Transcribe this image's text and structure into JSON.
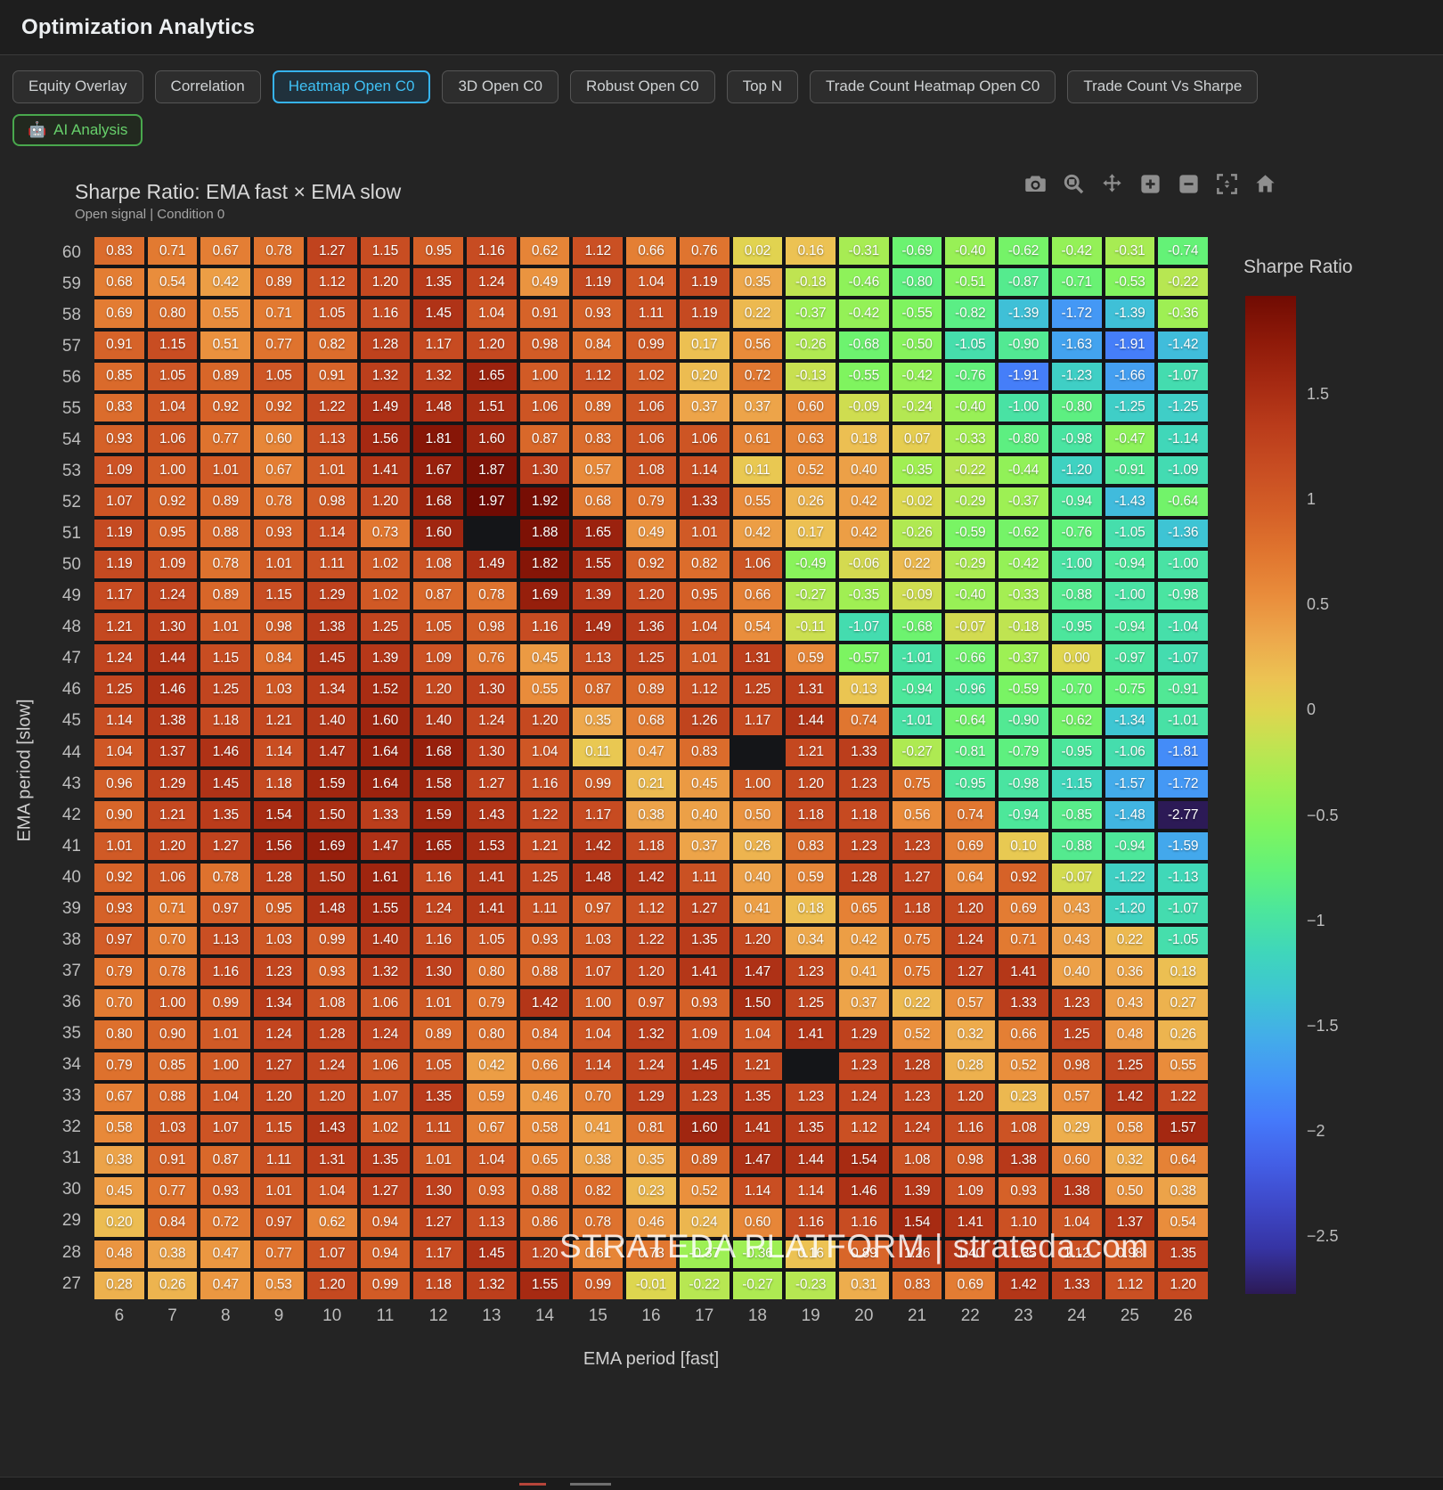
{
  "header": {
    "title": "Optimization Analytics"
  },
  "tabs": {
    "active_index": 2,
    "items": [
      {
        "label": "Equity Overlay"
      },
      {
        "label": "Correlation"
      },
      {
        "label": "Heatmap Open C0"
      },
      {
        "label": "3D Open C0"
      },
      {
        "label": "Robust Open C0"
      },
      {
        "label": "Top N"
      },
      {
        "label": "Trade Count Heatmap Open C0"
      },
      {
        "label": "Trade Count Vs Sharpe"
      }
    ]
  },
  "ai_button": {
    "icon": "🤖",
    "label": "AI Analysis"
  },
  "modebar": {
    "icons": [
      "camera-icon",
      "zoom-icon",
      "pan-icon",
      "zoom-in-icon",
      "zoom-out-icon",
      "autoscale-icon",
      "home-icon"
    ]
  },
  "chart": {
    "title": "Sharpe Ratio: EMA fast × EMA slow",
    "subtitle": "Open signal | Condition 0",
    "xlabel": "EMA period [fast]",
    "ylabel": "EMA period [slow]",
    "colorbar_title": "Sharpe Ratio",
    "watermark": "STRATEDA PLATFORM | strateda.com"
  },
  "chart_data": {
    "type": "heatmap",
    "xlabel": "EMA period [fast]",
    "ylabel": "EMA period [slow]",
    "x": [
      6,
      7,
      8,
      9,
      10,
      11,
      12,
      13,
      14,
      15,
      16,
      17,
      18,
      19,
      20,
      21,
      22,
      23,
      24,
      25,
      26
    ],
    "y": [
      60,
      59,
      58,
      57,
      56,
      55,
      54,
      53,
      52,
      51,
      50,
      49,
      48,
      47,
      46,
      45,
      44,
      43,
      42,
      41,
      40,
      39,
      38,
      37,
      36,
      35,
      34,
      33,
      32,
      31,
      30,
      29,
      28,
      27
    ],
    "zmin": -2.77,
    "zmax": 1.97,
    "legend_position": "right",
    "colorbar_ticks": [
      1.5,
      1,
      0.5,
      0,
      -0.5,
      -1,
      -1.5,
      -2,
      -2.5
    ],
    "colorscale": [
      [
        -2.77,
        "#2c1a56"
      ],
      [
        -2.55,
        "#3634a4"
      ],
      [
        -2.35,
        "#3e48c8"
      ],
      [
        -2.15,
        "#435fe6"
      ],
      [
        -1.95,
        "#4579fa"
      ],
      [
        -1.75,
        "#4494f7"
      ],
      [
        -1.55,
        "#43ade9"
      ],
      [
        -1.35,
        "#3ec5d3"
      ],
      [
        -1.15,
        "#3fd6bb"
      ],
      [
        -0.95,
        "#4ce69c"
      ],
      [
        -0.75,
        "#63f278"
      ],
      [
        -0.55,
        "#7ff45f"
      ],
      [
        -0.35,
        "#a0ef53"
      ],
      [
        -0.15,
        "#c4e251"
      ],
      [
        0.0,
        "#dfd54f"
      ],
      [
        0.15,
        "#ecc353"
      ],
      [
        0.35,
        "#eda74b"
      ],
      [
        0.55,
        "#e98c3b"
      ],
      [
        0.75,
        "#e0752f"
      ],
      [
        0.95,
        "#d45f27"
      ],
      [
        1.15,
        "#c84d22"
      ],
      [
        1.35,
        "#ba3c1b"
      ],
      [
        1.55,
        "#a62a12"
      ],
      [
        1.75,
        "#8f1a09"
      ],
      [
        1.97,
        "#700b03"
      ]
    ],
    "z": [
      [
        0.83,
        0.71,
        0.67,
        0.78,
        1.27,
        1.15,
        0.95,
        1.16,
        0.62,
        1.12,
        0.66,
        0.76,
        0.02,
        0.16,
        -0.31,
        -0.69,
        -0.4,
        -0.62,
        -0.42,
        -0.31,
        -0.74
      ],
      [
        0.68,
        0.54,
        0.42,
        0.89,
        1.12,
        1.2,
        1.35,
        1.24,
        0.49,
        1.19,
        1.04,
        1.19,
        0.35,
        -0.18,
        -0.46,
        -0.8,
        -0.51,
        -0.87,
        -0.71,
        -0.53,
        -0.22
      ],
      [
        0.69,
        0.8,
        0.55,
        0.71,
        1.05,
        1.16,
        1.45,
        1.04,
        0.91,
        0.93,
        1.11,
        1.19,
        0.22,
        -0.37,
        -0.42,
        -0.55,
        -0.82,
        -1.39,
        -1.72,
        -1.39,
        -0.36
      ],
      [
        0.91,
        1.15,
        0.51,
        0.77,
        0.82,
        1.28,
        1.17,
        1.2,
        0.98,
        0.84,
        0.99,
        0.17,
        0.56,
        -0.26,
        -0.68,
        -0.5,
        -1.05,
        -0.9,
        -1.63,
        -1.91,
        -1.42
      ],
      [
        0.85,
        1.05,
        0.89,
        1.05,
        0.91,
        1.32,
        1.32,
        1.65,
        1.0,
        1.12,
        1.02,
        0.2,
        0.72,
        -0.13,
        -0.55,
        -0.42,
        -0.76,
        -1.91,
        -1.23,
        -1.66,
        -1.07
      ],
      [
        0.83,
        1.04,
        0.92,
        0.92,
        1.22,
        1.49,
        1.48,
        1.51,
        1.06,
        0.89,
        1.06,
        0.37,
        0.37,
        0.6,
        -0.09,
        -0.24,
        -0.4,
        -1.0,
        -0.8,
        -1.25,
        -1.25
      ],
      [
        0.93,
        1.06,
        0.77,
        0.6,
        1.13,
        1.56,
        1.81,
        1.6,
        0.87,
        0.83,
        1.06,
        1.06,
        0.61,
        0.63,
        0.18,
        0.07,
        -0.33,
        -0.8,
        -0.98,
        -0.47,
        -1.14
      ],
      [
        1.09,
        1.0,
        1.01,
        0.67,
        1.01,
        1.41,
        1.67,
        1.87,
        1.3,
        0.57,
        1.08,
        1.14,
        0.11,
        0.52,
        0.4,
        -0.35,
        -0.22,
        -0.44,
        -1.2,
        -0.91,
        -1.09
      ],
      [
        1.07,
        0.92,
        0.89,
        0.78,
        0.98,
        1.2,
        1.68,
        1.97,
        1.92,
        0.68,
        0.79,
        1.33,
        0.55,
        0.26,
        0.42,
        -0.02,
        -0.29,
        -0.37,
        -0.94,
        -1.43,
        -0.64
      ],
      [
        1.19,
        0.95,
        0.88,
        0.93,
        1.14,
        0.73,
        1.6,
        null,
        1.88,
        1.65,
        0.49,
        1.01,
        0.42,
        0.17,
        0.42,
        -0.26,
        -0.59,
        -0.62,
        -0.76,
        -1.05,
        -1.36
      ],
      [
        1.19,
        1.09,
        0.78,
        1.01,
        1.11,
        1.02,
        1.08,
        1.49,
        1.82,
        1.55,
        0.92,
        0.82,
        1.06,
        -0.49,
        -0.06,
        0.22,
        -0.29,
        -0.42,
        -1.0,
        -0.94,
        -1.0
      ],
      [
        1.17,
        1.24,
        0.89,
        1.15,
        1.29,
        1.02,
        0.87,
        0.78,
        1.69,
        1.39,
        1.2,
        0.95,
        0.66,
        -0.27,
        -0.35,
        -0.09,
        -0.4,
        -0.33,
        -0.88,
        -1.0,
        -0.98
      ],
      [
        1.21,
        1.3,
        1.01,
        0.98,
        1.38,
        1.25,
        1.05,
        0.98,
        1.16,
        1.49,
        1.36,
        1.04,
        0.54,
        -0.11,
        -1.07,
        -0.68,
        -0.07,
        -0.18,
        -0.95,
        -0.94,
        -1.04
      ],
      [
        1.24,
        1.44,
        1.15,
        0.84,
        1.45,
        1.39,
        1.09,
        0.76,
        0.45,
        1.13,
        1.25,
        1.01,
        1.31,
        0.59,
        -0.57,
        -1.01,
        -0.66,
        -0.37,
        0.0,
        -0.97,
        -1.07
      ],
      [
        1.25,
        1.46,
        1.25,
        1.03,
        1.34,
        1.52,
        1.2,
        1.3,
        0.55,
        0.87,
        0.89,
        1.12,
        1.25,
        1.31,
        0.13,
        -0.94,
        -0.96,
        -0.59,
        -0.7,
        -0.75,
        -0.91
      ],
      [
        1.14,
        1.38,
        1.18,
        1.21,
        1.4,
        1.6,
        1.4,
        1.24,
        1.2,
        0.35,
        0.68,
        1.26,
        1.17,
        1.44,
        0.74,
        -1.01,
        -0.64,
        -0.9,
        -0.62,
        -1.34,
        -1.01
      ],
      [
        1.04,
        1.37,
        1.46,
        1.14,
        1.47,
        1.64,
        1.68,
        1.3,
        1.04,
        0.11,
        0.47,
        0.83,
        null,
        1.21,
        1.33,
        -0.27,
        -0.81,
        -0.79,
        -0.95,
        -1.06,
        -1.81
      ],
      [
        0.96,
        1.29,
        1.45,
        1.18,
        1.59,
        1.64,
        1.58,
        1.27,
        1.16,
        0.99,
        0.21,
        0.45,
        1.0,
        1.2,
        1.23,
        0.75,
        -0.95,
        -0.98,
        -1.15,
        -1.57,
        -1.72
      ],
      [
        0.9,
        1.21,
        1.35,
        1.54,
        1.5,
        1.33,
        1.59,
        1.43,
        1.22,
        1.17,
        0.38,
        0.4,
        0.5,
        1.18,
        1.18,
        0.56,
        0.74,
        -0.94,
        -0.85,
        -1.48,
        -2.77
      ],
      [
        1.01,
        1.2,
        1.27,
        1.56,
        1.69,
        1.47,
        1.65,
        1.53,
        1.21,
        1.42,
        1.18,
        0.37,
        0.26,
        0.83,
        1.23,
        1.23,
        0.69,
        0.1,
        -0.88,
        -0.94,
        -1.59
      ],
      [
        0.92,
        1.06,
        0.78,
        1.28,
        1.5,
        1.61,
        1.16,
        1.41,
        1.25,
        1.48,
        1.42,
        1.11,
        0.4,
        0.59,
        1.28,
        1.27,
        0.64,
        0.92,
        -0.07,
        -1.22,
        -1.13
      ],
      [
        0.93,
        0.71,
        0.97,
        0.95,
        1.48,
        1.55,
        1.24,
        1.41,
        1.11,
        0.97,
        1.12,
        1.27,
        0.41,
        0.18,
        0.65,
        1.18,
        1.2,
        0.69,
        0.43,
        -1.2,
        -1.07
      ],
      [
        0.97,
        0.7,
        1.13,
        1.03,
        0.99,
        1.4,
        1.16,
        1.05,
        0.93,
        1.03,
        1.22,
        1.35,
        1.2,
        0.34,
        0.42,
        0.75,
        1.24,
        0.71,
        0.43,
        0.22,
        -1.05
      ],
      [
        0.79,
        0.78,
        1.16,
        1.23,
        0.93,
        1.32,
        1.3,
        0.8,
        0.88,
        1.07,
        1.2,
        1.41,
        1.47,
        1.23,
        0.41,
        0.75,
        1.27,
        1.41,
        0.4,
        0.36,
        0.18
      ],
      [
        0.7,
        1.0,
        0.99,
        1.34,
        1.08,
        1.06,
        1.01,
        0.79,
        1.42,
        1.0,
        0.97,
        0.93,
        1.5,
        1.25,
        0.37,
        0.22,
        0.57,
        1.33,
        1.23,
        0.43,
        0.27
      ],
      [
        0.8,
        0.9,
        1.01,
        1.24,
        1.28,
        1.24,
        0.89,
        0.8,
        0.84,
        1.04,
        1.32,
        1.09,
        1.04,
        1.41,
        1.29,
        0.52,
        0.32,
        0.66,
        1.25,
        0.48,
        0.26
      ],
      [
        0.79,
        0.85,
        1.0,
        1.27,
        1.24,
        1.06,
        1.05,
        0.42,
        0.66,
        1.14,
        1.24,
        1.45,
        1.21,
        null,
        1.23,
        1.28,
        0.28,
        0.52,
        0.98,
        1.25,
        0.55
      ],
      [
        0.67,
        0.88,
        1.04,
        1.2,
        1.2,
        1.07,
        1.35,
        0.59,
        0.46,
        0.7,
        1.29,
        1.23,
        1.35,
        1.23,
        1.24,
        1.23,
        1.2,
        0.23,
        0.57,
        1.42,
        1.22
      ],
      [
        0.58,
        1.03,
        1.07,
        1.15,
        1.43,
        1.02,
        1.11,
        0.67,
        0.58,
        0.41,
        0.81,
        1.6,
        1.41,
        1.35,
        1.12,
        1.24,
        1.16,
        1.08,
        0.29,
        0.58,
        1.57
      ],
      [
        0.38,
        0.91,
        0.87,
        1.11,
        1.31,
        1.35,
        1.01,
        1.04,
        0.65,
        0.38,
        0.35,
        0.89,
        1.47,
        1.44,
        1.54,
        1.08,
        0.98,
        1.38,
        0.6,
        0.32,
        0.64
      ],
      [
        0.45,
        0.77,
        0.93,
        1.01,
        1.04,
        1.27,
        1.3,
        0.93,
        0.88,
        0.82,
        0.23,
        0.52,
        1.14,
        1.14,
        1.46,
        1.39,
        1.09,
        0.93,
        1.38,
        0.5,
        0.38
      ],
      [
        0.2,
        0.84,
        0.72,
        0.97,
        0.62,
        0.94,
        1.27,
        1.13,
        0.86,
        0.78,
        0.46,
        0.24,
        0.6,
        1.16,
        1.16,
        1.54,
        1.41,
        1.1,
        1.04,
        1.37,
        0.54
      ],
      [
        0.48,
        0.38,
        0.47,
        0.77,
        1.07,
        0.94,
        1.17,
        1.45,
        1.2,
        0.61,
        0.73,
        -0.37,
        -0.36,
        0.16,
        0.89,
        1.26,
        1.4,
        1.35,
        1.12,
        0.98,
        1.35
      ],
      [
        0.28,
        0.26,
        0.47,
        0.53,
        1.2,
        0.99,
        1.18,
        1.32,
        1.55,
        0.99,
        -0.01,
        -0.22,
        -0.27,
        -0.23,
        0.31,
        0.83,
        0.69,
        1.42,
        1.33,
        1.12,
        1.2
      ]
    ]
  }
}
